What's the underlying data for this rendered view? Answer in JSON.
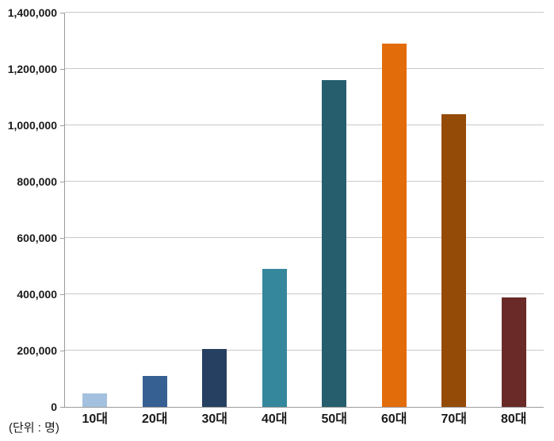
{
  "chart": {
    "unit_note": "(단위 : 명)",
    "axis_color": "#9b9b9b",
    "gridline_color": "#c9c9c9",
    "text_color": "#1a1a1a",
    "background_color": "#ffffff"
  },
  "chart_data": {
    "type": "bar",
    "title": "",
    "xlabel": "",
    "ylabel": "",
    "categories": [
      "10대",
      "20대",
      "30대",
      "40대",
      "50대",
      "60대",
      "70대",
      "80대"
    ],
    "values": [
      48000,
      110000,
      205000,
      490000,
      1160000,
      1290000,
      1040000,
      390000
    ],
    "bar_colors": [
      "#a3c1de",
      "#366092",
      "#254061",
      "#35879c",
      "#265e6d",
      "#e36c0a",
      "#954b08",
      "#692a28"
    ],
    "ylim": [
      0,
      1400000
    ],
    "ytick_step": 200000,
    "ytick_labels": [
      "0",
      "200,000",
      "400,000",
      "600,000",
      "800,000",
      "1,000,000",
      "1,200,000",
      "1,400,000"
    ],
    "grid": true,
    "legend": false,
    "unit_note": "(단위 : 명)"
  }
}
